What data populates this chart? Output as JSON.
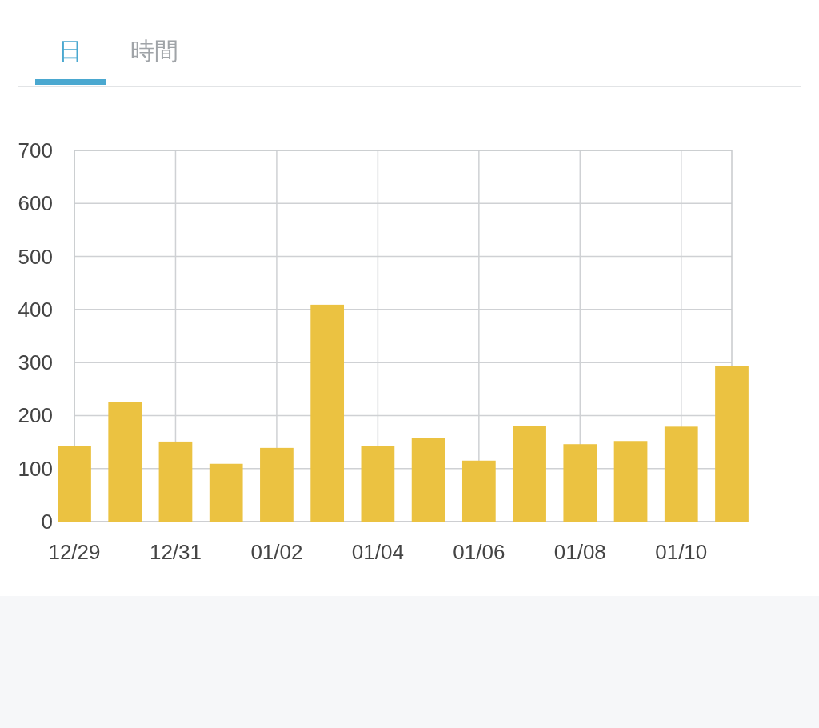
{
  "chart_data": {
    "type": "bar",
    "annotations": [
      "日",
      "時間"
    ],
    "categories": [
      "12/29",
      null,
      "12/31",
      null,
      "01/02",
      null,
      "01/04",
      null,
      "01/06",
      null,
      "01/08",
      null,
      "01/10",
      null
    ],
    "values": [
      143,
      226,
      151,
      109,
      139,
      409,
      142,
      157,
      115,
      181,
      146,
      152,
      179,
      293
    ],
    "color": "#ebc241",
    "ylim": [
      0,
      700
    ],
    "yticks": [
      0,
      100,
      200,
      300,
      400,
      500,
      600,
      700
    ],
    "grid": true
  }
}
